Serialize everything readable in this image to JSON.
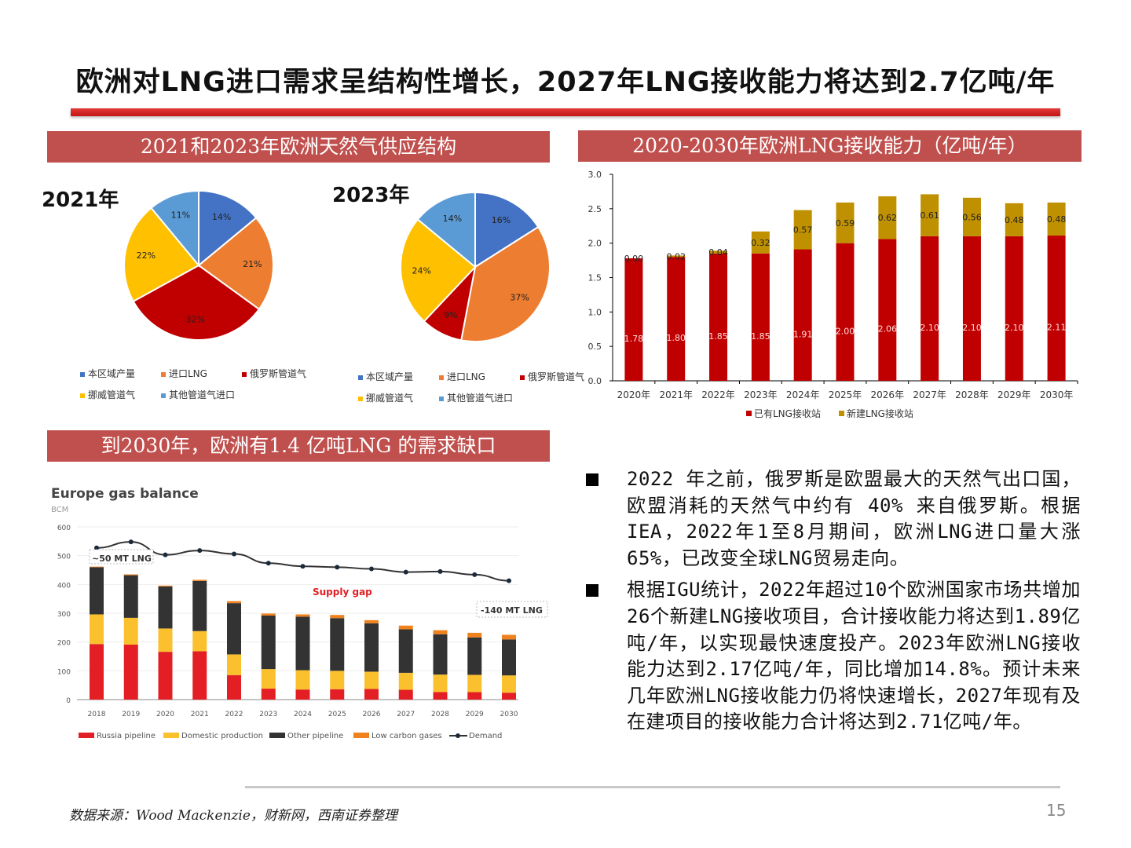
{
  "title": "欧洲对LNG进口需求呈结构性增长，2027年LNG接收能力将达到2.7亿吨/年",
  "sections": {
    "supply_structure": "2021和2023年欧洲天然气供应结构",
    "lng_capacity": "2020-2030年欧洲LNG接收能力（亿吨/年）",
    "demand_gap": "到2030年，欧洲有1.4 亿吨LNG 的需求缺口"
  },
  "colors": {
    "accent": "#c0504d",
    "title_bar": "#d42020"
  },
  "chart_data": [
    {
      "type": "pie",
      "label": "2021年",
      "categories": [
        "本区域产量",
        "进口LNG",
        "俄罗斯管道气",
        "挪威管道气",
        "其他管道气进口"
      ],
      "values": [
        14,
        21,
        32,
        22,
        11
      ],
      "data_labels": [
        "14%",
        "21%",
        "32%",
        "22%",
        "11%"
      ],
      "colors": [
        "#4472c4",
        "#ed7d31",
        "#c00000",
        "#ffc000",
        "#5b9bd5"
      ],
      "legend": "bottom"
    },
    {
      "type": "pie",
      "label": "2023年",
      "categories": [
        "本区域产量",
        "进口LNG",
        "俄罗斯管道气",
        "挪威管道气",
        "其他管道气进口"
      ],
      "values": [
        16,
        37,
        9,
        24,
        14
      ],
      "data_labels": [
        "16%",
        "37%",
        "9%",
        "24%",
        "14%"
      ],
      "colors": [
        "#4472c4",
        "#ed7d31",
        "#c00000",
        "#ffc000",
        "#5b9bd5"
      ],
      "legend": "bottom"
    },
    {
      "type": "bar",
      "stacked": true,
      "categories": [
        "2020年",
        "2021年",
        "2022年",
        "2023年",
        "2024年",
        "2025年",
        "2026年",
        "2027年",
        "2028年",
        "2029年",
        "2030年"
      ],
      "series": [
        {
          "name": "已有LNG接收站",
          "color": "#c00000",
          "values": [
            1.78,
            1.8,
            1.85,
            1.85,
            1.91,
            2.0,
            2.06,
            2.1,
            2.1,
            2.1,
            2.11
          ],
          "labels": [
            "1.78",
            "1.80",
            "1.85",
            "1.85",
            "1.91",
            "2.00",
            "2.06",
            "2.10",
            "2.10",
            "2.10",
            "2.11"
          ]
        },
        {
          "name": "新建LNG接收站",
          "color": "#bf9000",
          "values": [
            0.0,
            0.02,
            0.04,
            0.32,
            0.57,
            0.59,
            0.62,
            0.61,
            0.56,
            0.48,
            0.48
          ],
          "labels": [
            "0.00",
            "0.02",
            "0.04",
            "0.32",
            "0.57",
            "0.59",
            "0.62",
            "0.61",
            "0.56",
            "0.48",
            "0.48"
          ]
        }
      ],
      "ylim": [
        0,
        3.0
      ],
      "yticks": [
        "0.0",
        "0.5",
        "1.0",
        "1.5",
        "2.0",
        "2.5",
        "3.0"
      ],
      "legend": "bottom",
      "grid": false
    },
    {
      "type": "bar",
      "stacked": true,
      "title": "Europe gas balance",
      "ylabel": "BCM",
      "categories": [
        "2018",
        "2019",
        "2020",
        "2021",
        "2022",
        "2023",
        "2024",
        "2025",
        "2026",
        "2027",
        "2028",
        "2029",
        "2030"
      ],
      "series": [
        {
          "name": "Russia pipeline",
          "color": "#e31e24",
          "values": [
            193,
            191,
            166,
            168,
            85,
            38,
            35,
            36,
            37,
            34,
            26,
            26,
            24
          ]
        },
        {
          "name": "Domestic production",
          "color": "#fbc02d",
          "values": [
            103,
            93,
            81,
            70,
            72,
            68,
            67,
            64,
            60,
            59,
            61,
            60,
            60
          ]
        },
        {
          "name": "Other pipeline",
          "color": "#333333",
          "values": [
            164,
            148,
            146,
            174,
            178,
            186,
            186,
            183,
            168,
            151,
            140,
            130,
            125
          ]
        },
        {
          "name": "Low carbon gases",
          "color": "#f0821e",
          "values": [
            2,
            3,
            3,
            4,
            7,
            7,
            8,
            11,
            11,
            13,
            14,
            16,
            16
          ]
        }
      ],
      "line_series": {
        "name": "Demand",
        "color": "#333333",
        "values": [
          527,
          548,
          503,
          518,
          506,
          474,
          463,
          460,
          454,
          443,
          445,
          434,
          413
        ]
      },
      "ylim": [
        0,
        600
      ],
      "yticks": [
        "0",
        "100",
        "200",
        "300",
        "400",
        "500",
        "600"
      ],
      "annotations": [
        "~50 MT LNG",
        "Supply gap",
        "-140 MT LNG"
      ],
      "legend": "bottom",
      "grid": true
    }
  ],
  "bullets": [
    "2022 年之前，俄罗斯是欧盟最大的天然气出口国，欧盟消耗的天然气中约有 40% 来自俄罗斯。根据IEA，2022年1至8月期间，欧洲LNG进口量大涨65%，已改变全球LNG贸易走向。",
    "根据IGU统计，2022年超过10个欧洲国家市场共增加26个新建LNG接收项目，合计接收能力将达到1.89亿吨/年，以实现最快速度投产。2023年欧洲LNG接收能力达到2.17亿吨/年，同比增加14.8%。预计未来几年欧洲LNG接收能力仍将快速增长，2027年现有及在建项目的接收能力合计将达到2.71亿吨/年。"
  ],
  "footer": {
    "source": "数据来源：Wood Mackenzie，财新网，西南证券整理",
    "page_number": "15"
  }
}
